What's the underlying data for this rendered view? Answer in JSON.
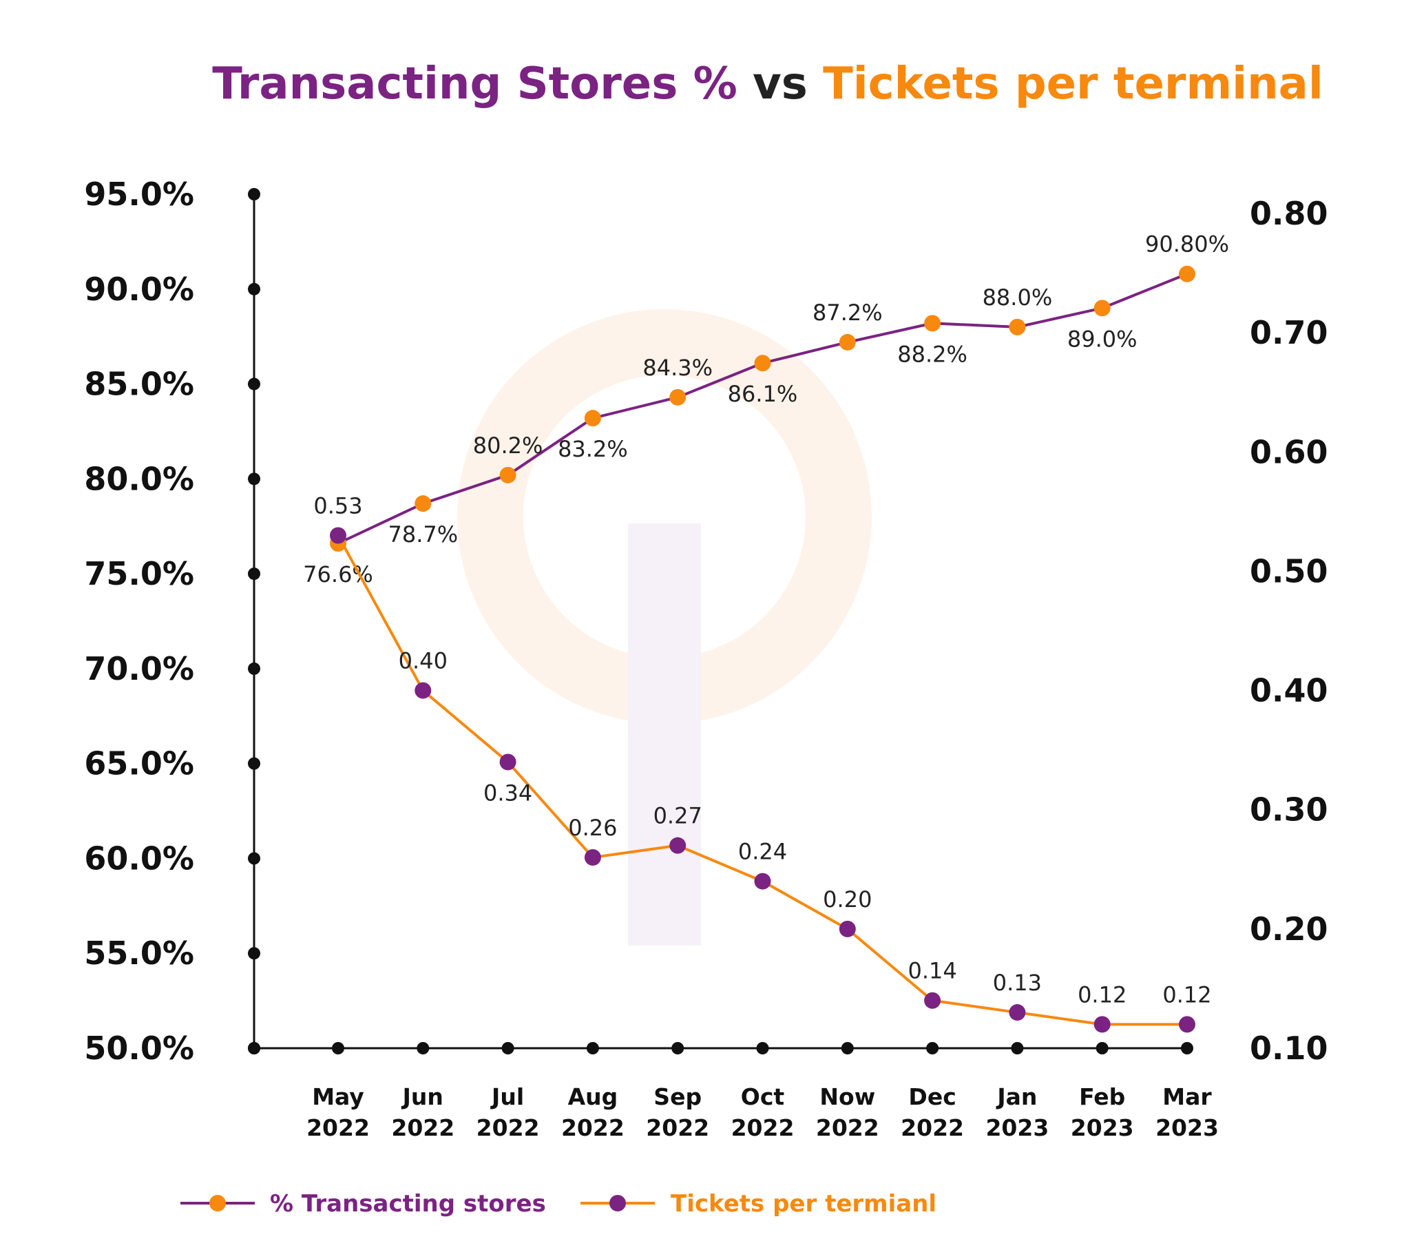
{
  "colors": {
    "purple": "#7b2382",
    "orange": "#f7890f",
    "axis": "#111111",
    "title_dark": "#222222"
  },
  "title": {
    "part1": "Transacting Stores %",
    "part2": "vs",
    "part3": "Tickets per terminal"
  },
  "chart_data": {
    "type": "line",
    "title": "Transacting Stores % vs Tickets per terminal",
    "categories": [
      [
        "May",
        "2022"
      ],
      [
        "Jun",
        "2022"
      ],
      [
        "Jul",
        "2022"
      ],
      [
        "Aug",
        "2022"
      ],
      [
        "Sep",
        "2022"
      ],
      [
        "Oct",
        "2022"
      ],
      [
        "Now",
        "2022"
      ],
      [
        "Dec",
        "2022"
      ],
      [
        "Jan",
        "2023"
      ],
      [
        "Feb",
        "2023"
      ],
      [
        "Mar",
        "2023"
      ]
    ],
    "left_axis": {
      "min": 50,
      "max": 95,
      "step": 5,
      "tick_labels": [
        "50.0%",
        "55.0%",
        "60.0%",
        "65.0%",
        "70.0%",
        "75.0%",
        "80.0%",
        "85.0%",
        "90.0%",
        "95.0%"
      ]
    },
    "right_axis": {
      "min": 0.1,
      "max": 0.8,
      "step": 0.1,
      "tick_labels": [
        "0.10",
        "0.20",
        "0.30",
        "0.40",
        "0.50",
        "0.60",
        "0.70",
        "0.80"
      ]
    },
    "series": [
      {
        "name": "% Transacting stores",
        "axis": "left",
        "line_color": "#7b2382",
        "marker_color": "#f7890f",
        "values": [
          76.6,
          78.7,
          80.2,
          83.2,
          84.3,
          86.1,
          87.2,
          88.2,
          88.0,
          89.0,
          90.8
        ],
        "labels": [
          "76.6%",
          "78.7%",
          "80.2%",
          "83.2%",
          "84.3%",
          "86.1%",
          "87.2%",
          "88.2%",
          "88.0%",
          "89.0%",
          "90.80%"
        ],
        "label_side": [
          "below",
          "below",
          "above",
          "below",
          "above",
          "below",
          "above",
          "below",
          "above",
          "below",
          "above"
        ]
      },
      {
        "name": "Tickets per termianl",
        "axis": "right",
        "line_color": "#f7890f",
        "marker_color": "#7b2382",
        "values": [
          0.53,
          0.4,
          0.34,
          0.26,
          0.27,
          0.24,
          0.2,
          0.14,
          0.13,
          0.12,
          0.12
        ],
        "labels": [
          "0.53",
          "0.40",
          "0.34",
          "0.26",
          "0.27",
          "0.24",
          "0.20",
          "0.14",
          "0.13",
          "0.12",
          "0.12"
        ],
        "label_side": [
          "above",
          "above",
          "below",
          "above",
          "above",
          "above",
          "above",
          "above",
          "above",
          "above",
          "above"
        ]
      }
    ],
    "legend": {
      "position": "bottom-left",
      "entries": [
        "% Transacting stores",
        "Tickets per termianl"
      ]
    },
    "grid": false
  }
}
